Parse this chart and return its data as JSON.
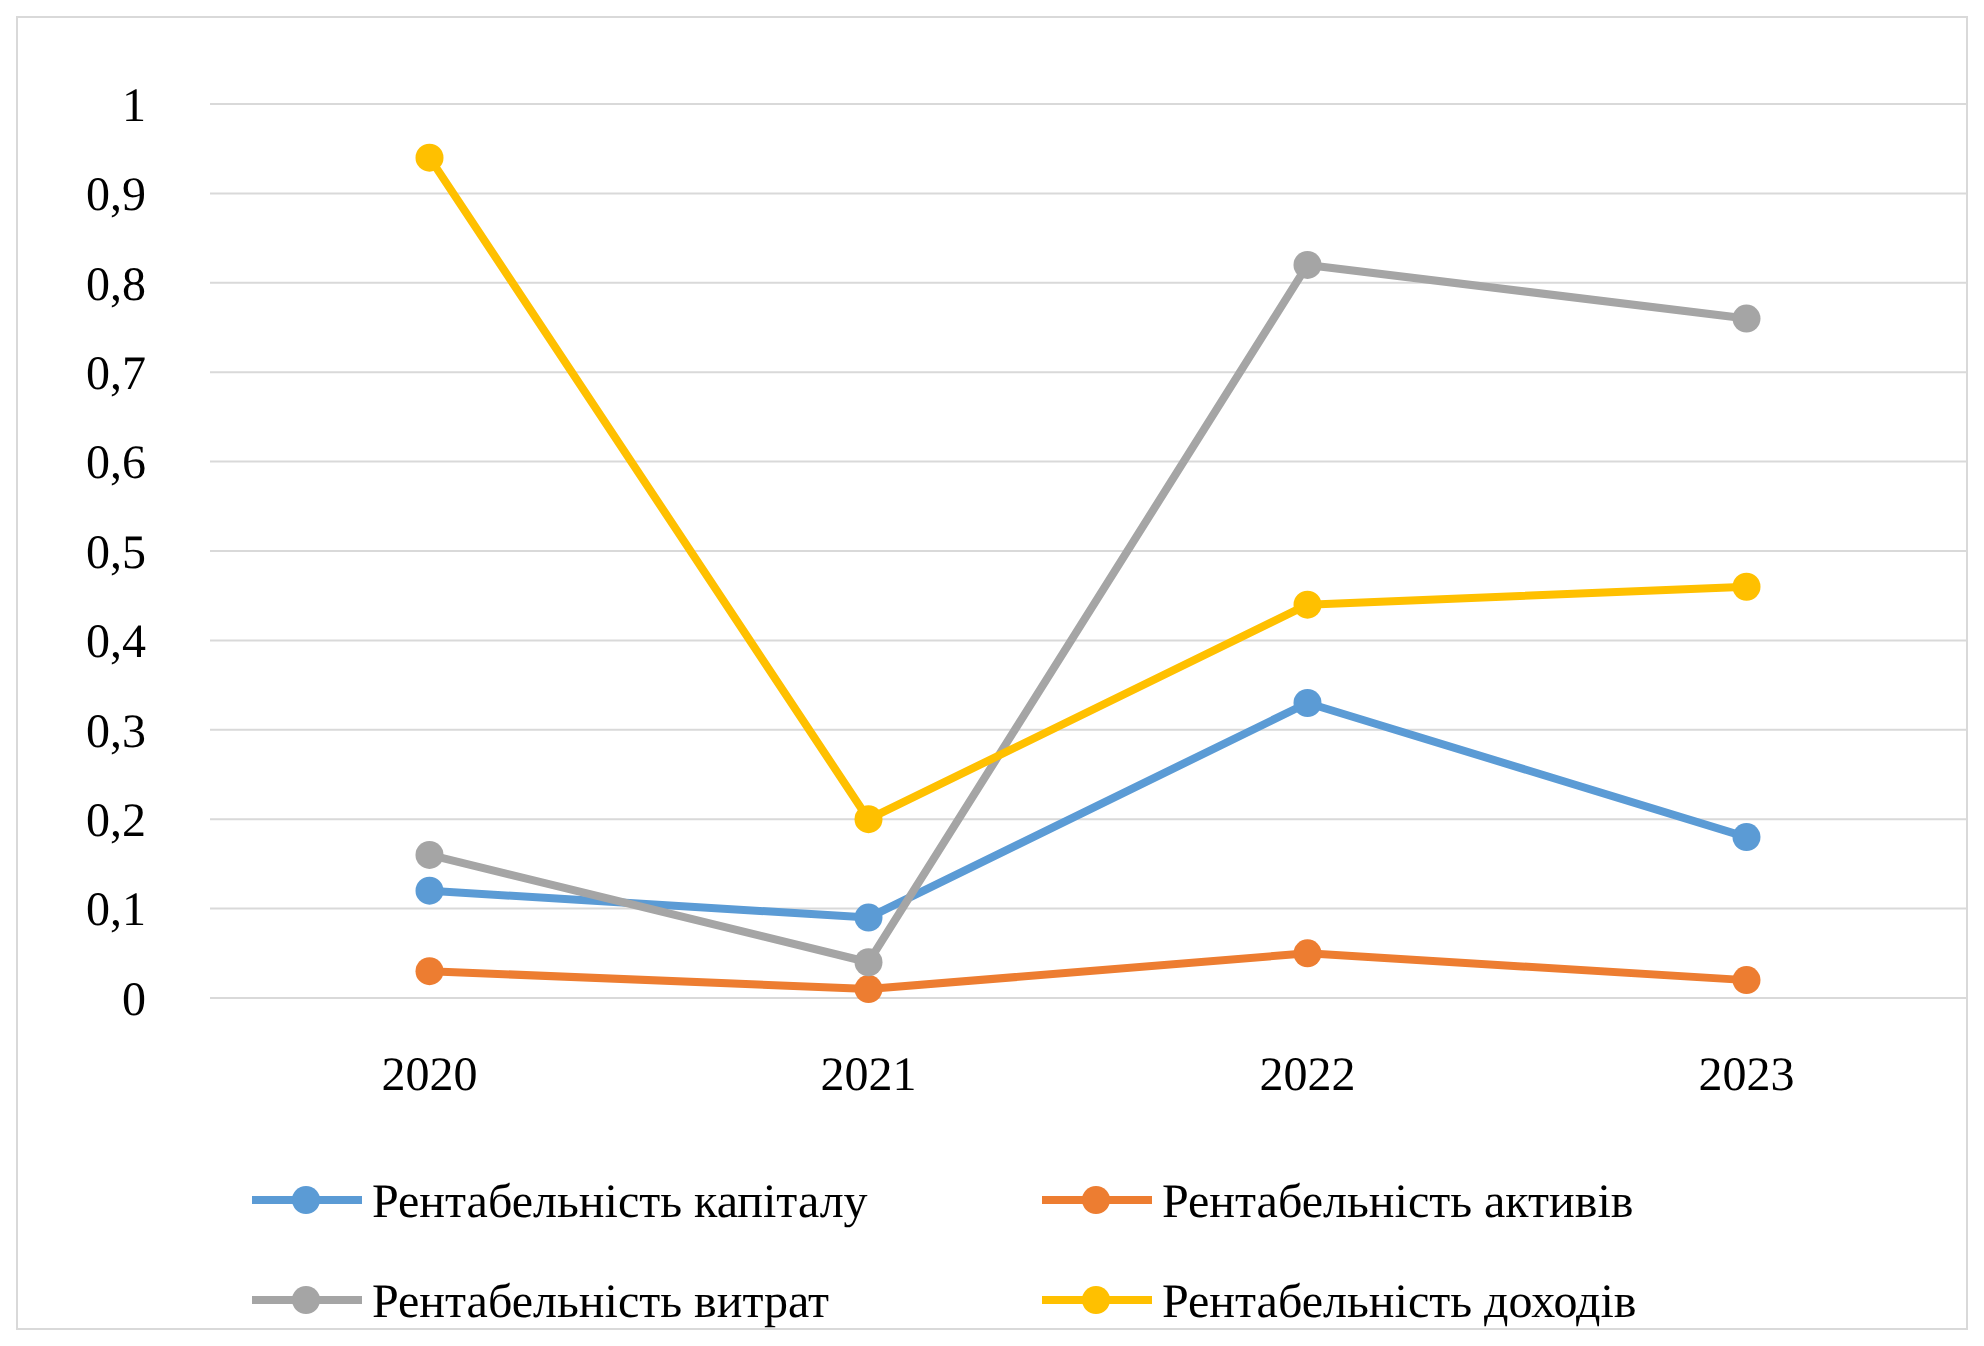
{
  "chart_data": {
    "type": "line",
    "categories": [
      "2020",
      "2021",
      "2022",
      "2023"
    ],
    "series": [
      {
        "name": "Рентабельність капіталу",
        "color": "#5b9bd5",
        "values": [
          0.12,
          0.09,
          0.33,
          0.18
        ]
      },
      {
        "name": "Рентабельність активів",
        "color": "#ed7d31",
        "values": [
          0.03,
          0.01,
          0.05,
          0.02
        ]
      },
      {
        "name": "Рентабельність витрат",
        "color": "#a5a5a5",
        "values": [
          0.16,
          0.04,
          0.82,
          0.76
        ]
      },
      {
        "name": "Рентабельність доходів",
        "color": "#ffc000",
        "values": [
          0.94,
          0.2,
          0.44,
          0.46
        ]
      }
    ],
    "ylim": [
      0,
      1
    ],
    "yticks": [
      0,
      {
        "value": 0.1,
        "label": "0,1"
      },
      {
        "value": 0.2,
        "label": "0,2"
      },
      {
        "value": 0.3,
        "label": "0,3"
      },
      {
        "value": 0.4,
        "label": "0,4"
      },
      {
        "value": 0.5,
        "label": "0,5"
      },
      {
        "value": 0.6,
        "label": "0,6"
      },
      {
        "value": 0.7,
        "label": "0,7"
      },
      {
        "value": 0.8,
        "label": "0,8"
      },
      {
        "value": 0.9,
        "label": "0,9"
      },
      1
    ],
    "grid": "y",
    "legend": "bottom",
    "marker": "circle",
    "line_style": "solid"
  }
}
